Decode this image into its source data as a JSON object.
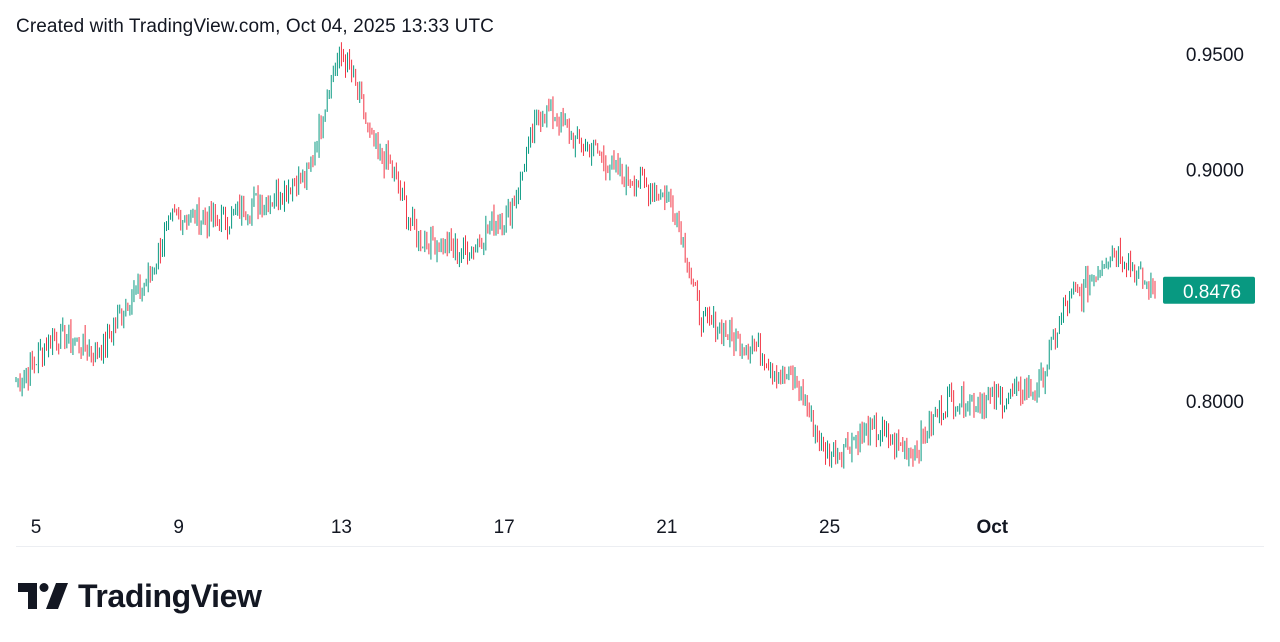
{
  "header": {
    "caption": "Created with TradingView.com, Oct 04, 2025 13:33 UTC"
  },
  "brand": {
    "name": "TradingView"
  },
  "colors": {
    "up": "#089981",
    "down": "#f23645",
    "current_tag": "#089981",
    "text": "#131722"
  },
  "chart_data": {
    "type": "candlestick",
    "title": "",
    "xlabel": "",
    "ylabel": "",
    "x_tick_labels": [
      "5",
      "9",
      "13",
      "17",
      "21",
      "25",
      "Oct"
    ],
    "y_tick_labels": [
      "0.9500",
      "0.9000",
      "0.8000"
    ],
    "ylim": [
      0.755,
      0.956
    ],
    "current_price": "0.8476",
    "grid": false,
    "legend": "none",
    "series": [
      {
        "name": "",
        "x": [
          "Sep 5",
          "Sep 6",
          "Sep 7",
          "Sep 8",
          "Sep 9",
          "Sep 10",
          "Sep 11",
          "Sep 12",
          "Sep 13",
          "Sep 14",
          "Sep 15",
          "Sep 16",
          "Sep 17",
          "Sep 18",
          "Sep 19",
          "Sep 20",
          "Sep 21",
          "Sep 22",
          "Sep 23",
          "Sep 24",
          "Sep 25",
          "Sep 26",
          "Sep 27",
          "Sep 28",
          "Sep 29",
          "Sep 30",
          "Oct 1",
          "Oct 2",
          "Oct 3"
        ],
        "values": [
          0.8085,
          0.828,
          0.822,
          0.848,
          0.88,
          0.878,
          0.886,
          0.895,
          0.948,
          0.905,
          0.87,
          0.865,
          0.88,
          0.925,
          0.91,
          0.897,
          0.889,
          0.833,
          0.825,
          0.81,
          0.778,
          0.787,
          0.779,
          0.801,
          0.8,
          0.805,
          0.845,
          0.865,
          0.8476
        ]
      }
    ]
  }
}
